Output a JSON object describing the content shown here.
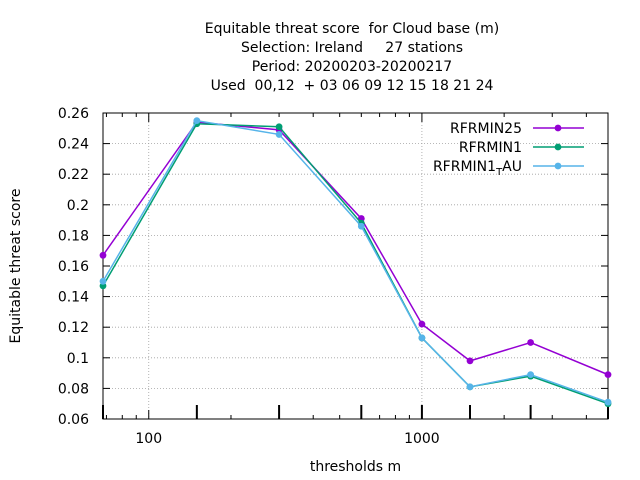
{
  "chart_data": {
    "type": "line",
    "title_lines": [
      "Equitable threat score  for Cloud base (m)",
      "Selection: Ireland     27 stations",
      "Period: 20200203-20200217",
      "Used  00,12  + 03 06 09 12 15 18 21 24"
    ],
    "xlabel": "thresholds m",
    "ylabel": "Equitable threat score",
    "x_scale": "log",
    "xlim": [
      68,
      4800
    ],
    "ylim": [
      0.06,
      0.26
    ],
    "x_ticks": [
      {
        "value": 100,
        "label": "100"
      },
      {
        "value": 1000,
        "label": "1000"
      }
    ],
    "y_ticks": [
      {
        "value": 0.06,
        "label": "0.06"
      },
      {
        "value": 0.08,
        "label": "0.08"
      },
      {
        "value": 0.1,
        "label": "0.1"
      },
      {
        "value": 0.12,
        "label": "0.12"
      },
      {
        "value": 0.14,
        "label": "0.14"
      },
      {
        "value": 0.16,
        "label": "0.16"
      },
      {
        "value": 0.18,
        "label": "0.18"
      },
      {
        "value": 0.2,
        "label": "0.2"
      },
      {
        "value": 0.22,
        "label": "0.22"
      },
      {
        "value": 0.24,
        "label": "0.24"
      },
      {
        "value": 0.26,
        "label": "0.26"
      }
    ],
    "grid": true,
    "legend_position": "top-right",
    "x": [
      68,
      150,
      300,
      600,
      1000,
      1500,
      2500,
      4800
    ],
    "series": [
      {
        "name": "RFRMIN25",
        "color": "#9400d3",
        "marker": "filled-circle",
        "values": [
          0.167,
          0.254,
          0.249,
          0.191,
          0.122,
          0.098,
          0.11,
          0.089
        ]
      },
      {
        "name": "RFRMIN1",
        "color": "#009e73",
        "marker": "filled-circle",
        "values": [
          0.147,
          0.253,
          0.251,
          0.188,
          0.113,
          0.081,
          0.088,
          0.07
        ]
      },
      {
        "name": "RFRMIN1",
        "name_sub": "T",
        "name_suffix": "AU",
        "color": "#56b4e9",
        "marker": "filled-circle",
        "values": [
          0.15,
          0.255,
          0.246,
          0.186,
          0.113,
          0.081,
          0.089,
          0.071
        ]
      }
    ]
  }
}
